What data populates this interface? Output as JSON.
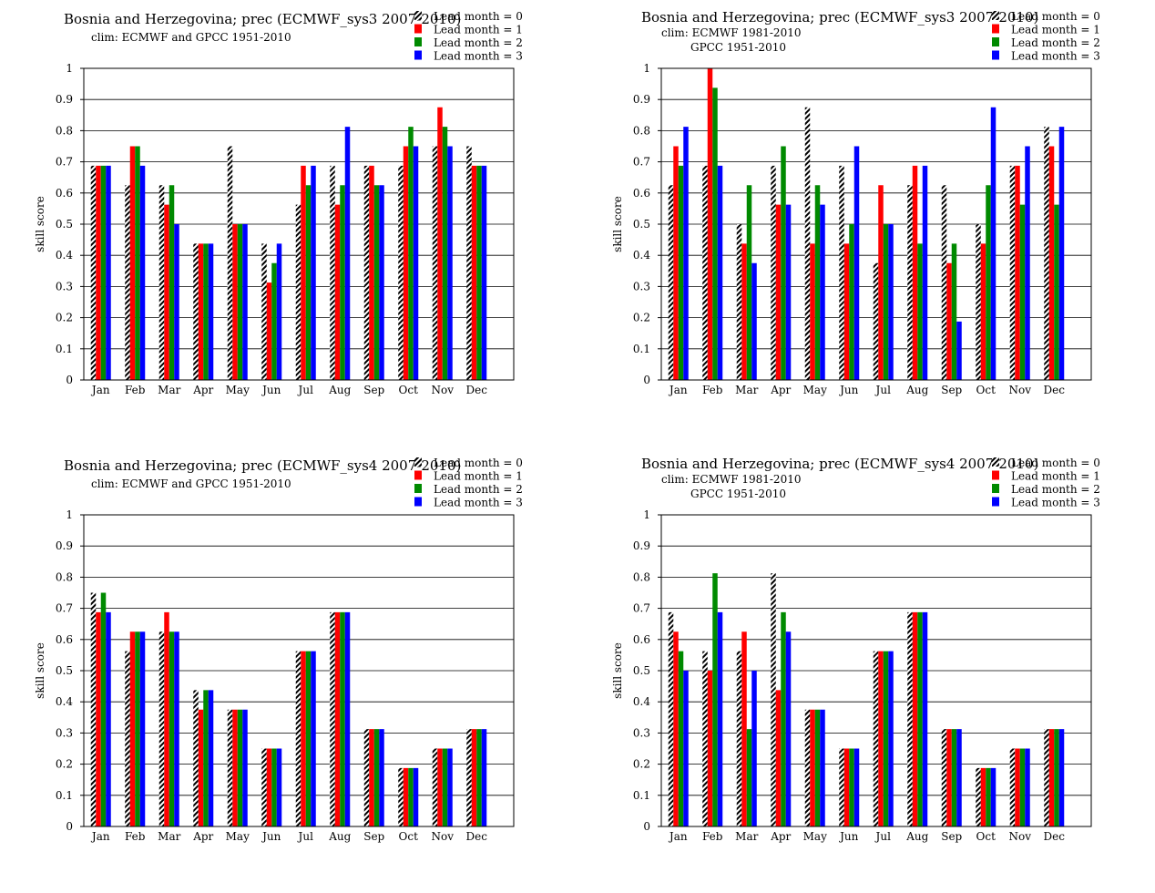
{
  "chart_data": [
    {
      "type": "bar",
      "title": "Bosnia and Herzegovina; prec (ECMWF_sys3 2007-2010)",
      "subtitle": [
        "clim: ECMWF and GPCC 1951-2010"
      ],
      "ylabel": "skill  score",
      "xlabel": "",
      "ylim": [
        0,
        1
      ],
      "yticks": [
        "0",
        "0.1",
        "0.2",
        "0.3",
        "0.4",
        "0.5",
        "0.6",
        "0.7",
        "0.8",
        "0.9",
        "1"
      ],
      "grid": true,
      "legend_position": "top-right",
      "categories": [
        "Jan",
        "Feb",
        "Mar",
        "Apr",
        "May",
        "Jun",
        "Jul",
        "Aug",
        "Sep",
        "Oct",
        "Nov",
        "Dec"
      ],
      "series": [
        {
          "name": "Lead month = 0",
          "values": [
            0.6875,
            0.625,
            0.625,
            0.4375,
            0.75,
            0.4375,
            0.5625,
            0.6875,
            0.6875,
            0.6875,
            0.75,
            0.75
          ]
        },
        {
          "name": "Lead month = 1",
          "values": [
            0.6875,
            0.75,
            0.5625,
            0.4375,
            0.5,
            0.3125,
            0.6875,
            0.5625,
            0.6875,
            0.75,
            0.875,
            0.6875
          ]
        },
        {
          "name": "Lead month = 2",
          "values": [
            0.6875,
            0.75,
            0.625,
            0.4375,
            0.5,
            0.375,
            0.625,
            0.625,
            0.625,
            0.8125,
            0.8125,
            0.6875
          ]
        },
        {
          "name": "Lead month = 3",
          "values": [
            0.6875,
            0.6875,
            0.5,
            0.4375,
            0.5,
            0.4375,
            0.6875,
            0.8125,
            0.625,
            0.75,
            0.75,
            0.6875
          ]
        }
      ]
    },
    {
      "type": "bar",
      "title": "Bosnia and Herzegovina; prec (ECMWF_sys3 2007-2010)",
      "subtitle": [
        "clim: ECMWF 1981-2010",
        "GPCC 1951-2010"
      ],
      "ylabel": "skill  score",
      "xlabel": "",
      "ylim": [
        0,
        1
      ],
      "yticks": [
        "0",
        "0.1",
        "0.2",
        "0.3",
        "0.4",
        "0.5",
        "0.6",
        "0.7",
        "0.8",
        "0.9",
        "1"
      ],
      "grid": true,
      "legend_position": "top-right",
      "categories": [
        "Jan",
        "Feb",
        "Mar",
        "Apr",
        "May",
        "Jun",
        "Jul",
        "Aug",
        "Sep",
        "Oct",
        "Nov",
        "Dec"
      ],
      "series": [
        {
          "name": "Lead month = 0",
          "values": [
            0.625,
            0.6875,
            0.5,
            0.6875,
            0.875,
            0.6875,
            0.375,
            0.625,
            0.625,
            0.5,
            0.6875,
            0.8125
          ]
        },
        {
          "name": "Lead month = 1",
          "values": [
            0.75,
            1.0,
            0.4375,
            0.5625,
            0.4375,
            0.4375,
            0.625,
            0.6875,
            0.375,
            0.4375,
            0.6875,
            0.75
          ]
        },
        {
          "name": "Lead month = 2",
          "values": [
            0.6875,
            0.9375,
            0.625,
            0.75,
            0.625,
            0.5,
            0.5,
            0.4375,
            0.4375,
            0.625,
            0.5625,
            0.5625
          ]
        },
        {
          "name": "Lead month = 3",
          "values": [
            0.8125,
            0.6875,
            0.375,
            0.5625,
            0.5625,
            0.75,
            0.5,
            0.6875,
            0.1875,
            0.875,
            0.75,
            0.8125
          ]
        }
      ]
    },
    {
      "type": "bar",
      "title": "Bosnia and Herzegovina; prec (ECMWF_sys4 2007-2010)",
      "subtitle": [
        "clim: ECMWF and GPCC 1951-2010"
      ],
      "ylabel": "skill  score",
      "xlabel": "",
      "ylim": [
        0,
        1
      ],
      "yticks": [
        "0",
        "0.1",
        "0.2",
        "0.3",
        "0.4",
        "0.5",
        "0.6",
        "0.7",
        "0.8",
        "0.9",
        "1"
      ],
      "grid": true,
      "legend_position": "top-right",
      "categories": [
        "Jan",
        "Feb",
        "Mar",
        "Apr",
        "May",
        "Jun",
        "Jul",
        "Aug",
        "Sep",
        "Oct",
        "Nov",
        "Dec"
      ],
      "series": [
        {
          "name": "Lead month = 0",
          "values": [
            0.75,
            0.5625,
            0.625,
            0.4375,
            0.375,
            0.25,
            0.5625,
            0.6875,
            0.3125,
            0.1875,
            0.25,
            0.3125
          ]
        },
        {
          "name": "Lead month = 1",
          "values": [
            0.6875,
            0.625,
            0.6875,
            0.375,
            0.375,
            0.25,
            0.5625,
            0.6875,
            0.3125,
            0.1875,
            0.25,
            0.3125
          ]
        },
        {
          "name": "Lead month = 2",
          "values": [
            0.75,
            0.625,
            0.625,
            0.4375,
            0.375,
            0.25,
            0.5625,
            0.6875,
            0.3125,
            0.1875,
            0.25,
            0.3125
          ]
        },
        {
          "name": "Lead month = 3",
          "values": [
            0.6875,
            0.625,
            0.625,
            0.4375,
            0.375,
            0.25,
            0.5625,
            0.6875,
            0.3125,
            0.1875,
            0.25,
            0.3125
          ]
        }
      ]
    },
    {
      "type": "bar",
      "title": "Bosnia and Herzegovina; prec (ECMWF_sys4 2007-2010)",
      "subtitle": [
        "clim: ECMWF 1981-2010",
        "GPCC 1951-2010"
      ],
      "ylabel": "skill  score",
      "xlabel": "",
      "ylim": [
        0,
        1
      ],
      "yticks": [
        "0",
        "0.1",
        "0.2",
        "0.3",
        "0.4",
        "0.5",
        "0.6",
        "0.7",
        "0.8",
        "0.9",
        "1"
      ],
      "grid": true,
      "legend_position": "top-right",
      "categories": [
        "Jan",
        "Feb",
        "Mar",
        "Apr",
        "May",
        "Jun",
        "Jul",
        "Aug",
        "Sep",
        "Oct",
        "Nov",
        "Dec"
      ],
      "series": [
        {
          "name": "Lead month = 0",
          "values": [
            0.6875,
            0.5625,
            0.5625,
            0.8125,
            0.375,
            0.25,
            0.5625,
            0.6875,
            0.3125,
            0.1875,
            0.25,
            0.3125
          ]
        },
        {
          "name": "Lead month = 1",
          "values": [
            0.625,
            0.5,
            0.625,
            0.4375,
            0.375,
            0.25,
            0.5625,
            0.6875,
            0.3125,
            0.1875,
            0.25,
            0.3125
          ]
        },
        {
          "name": "Lead month = 2",
          "values": [
            0.5625,
            0.8125,
            0.3125,
            0.6875,
            0.375,
            0.25,
            0.5625,
            0.6875,
            0.3125,
            0.1875,
            0.25,
            0.3125
          ]
        },
        {
          "name": "Lead month = 3",
          "values": [
            0.5,
            0.6875,
            0.5,
            0.625,
            0.375,
            0.25,
            0.5625,
            0.6875,
            0.3125,
            0.1875,
            0.25,
            0.3125
          ]
        }
      ]
    }
  ],
  "colors": {
    "lead1": "#ff0000",
    "lead2": "#008a00",
    "lead3": "#0000ff",
    "lead0_pattern": "black-white-diagonal-hatch",
    "grid": "#000000"
  }
}
